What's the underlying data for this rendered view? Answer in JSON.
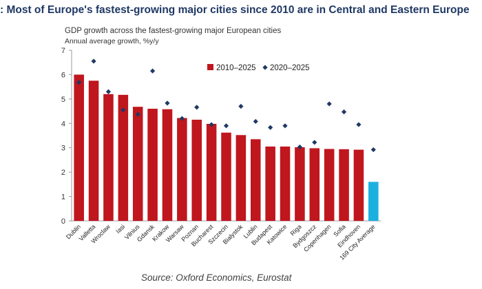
{
  "headline": ": Most of Europe's fastest-growing major cities since 2010 are in Central and Eastern Europe",
  "source": "Source: Oxford Economics, Eurostat",
  "chart_data": {
    "type": "bar",
    "title": "GDP growth across the fastest-growing major European cities",
    "ylabel": "Annual average growth, %y/y",
    "xlabel": "",
    "ylim": [
      0,
      7
    ],
    "yticks": [
      0,
      1,
      2,
      3,
      4,
      5,
      6,
      7
    ],
    "grid": false,
    "legend_position": "top-right",
    "categories": [
      "Dublin",
      "Valletta",
      "Wroclaw",
      "Iasi",
      "Vilnius",
      "Gdansk",
      "Krakow",
      "Warsaw",
      "Poznan",
      "Bucharest",
      "Szczecin",
      "Bialystok",
      "Lublin",
      "Budapest",
      "Katowice",
      "Riga",
      "Bydgoszcz",
      "Copenhagen",
      "Sofia",
      "Eindhoven",
      "169 City Average"
    ],
    "series": [
      {
        "name": "2010–2025",
        "kind": "bar",
        "color": "#c0161e",
        "highlight_color": "#1cb0e0",
        "highlight_category": "169 City Average",
        "values": [
          6.0,
          5.75,
          5.2,
          5.17,
          4.68,
          4.6,
          4.58,
          4.22,
          4.15,
          3.98,
          3.62,
          3.52,
          3.35,
          3.05,
          3.05,
          3.02,
          2.98,
          2.95,
          2.94,
          2.92,
          1.6
        ]
      },
      {
        "name": "2020–2025",
        "kind": "marker",
        "color": "#1f3864",
        "values": [
          5.68,
          6.55,
          5.3,
          4.55,
          4.37,
          6.15,
          4.83,
          4.2,
          4.66,
          3.95,
          3.9,
          4.7,
          4.08,
          3.83,
          3.9,
          3.03,
          3.22,
          4.8,
          4.47,
          3.95,
          2.92
        ]
      }
    ]
  }
}
